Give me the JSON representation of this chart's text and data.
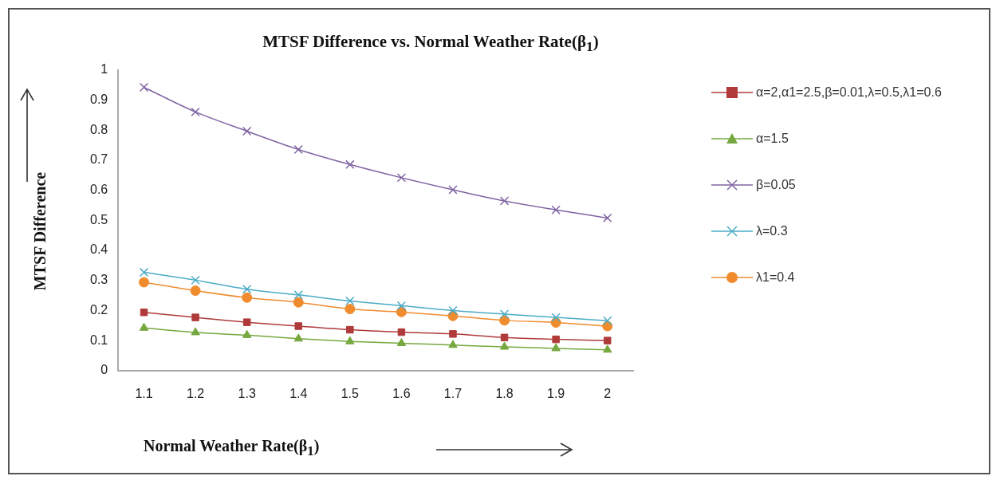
{
  "chart_data": {
    "type": "line",
    "title": "MTSF Difference vs. Normal Weather Rate(β$_{1}$)",
    "xlabel": "Normal Weather Rate(β$_{1}$)",
    "ylabel": "MTSF Difference",
    "categories": [
      "1.1",
      "1.2",
      "1.3",
      "1.4",
      "1.5",
      "1.6",
      "1.7",
      "1.8",
      "1.9",
      "2"
    ],
    "ylim": [
      0,
      1
    ],
    "yticks": [
      0,
      0.1,
      0.2,
      0.3,
      0.4,
      0.5,
      0.6,
      0.7,
      0.8,
      0.9,
      1
    ],
    "grid": false,
    "legend": "right",
    "series": [
      {
        "name": "α=2,α1=2.5,β=0.01,λ=0.5,λ1=0.6",
        "color": "#b03a3a",
        "marker": "square",
        "values": [
          0.194,
          0.177,
          0.161,
          0.148,
          0.136,
          0.128,
          0.122,
          0.11,
          0.104,
          0.1
        ]
      },
      {
        "name": "α=1.5",
        "color": "#77a83f",
        "marker": "triangle",
        "values": [
          0.142,
          0.127,
          0.118,
          0.106,
          0.097,
          0.091,
          0.085,
          0.079,
          0.074,
          0.069
        ]
      },
      {
        "name": "β=0.05",
        "color": "#8064a2",
        "marker": "cross",
        "values": [
          0.943,
          0.861,
          0.797,
          0.736,
          0.686,
          0.642,
          0.602,
          0.565,
          0.535,
          0.508
        ]
      },
      {
        "name": "λ=0.3",
        "color": "#4bacc6",
        "marker": "cross",
        "values": [
          0.327,
          0.301,
          0.271,
          0.252,
          0.232,
          0.216,
          0.2,
          0.188,
          0.177,
          0.166
        ]
      },
      {
        "name": "λ1=0.4",
        "color": "#f08c2e",
        "marker": "circle",
        "values": [
          0.294,
          0.266,
          0.243,
          0.227,
          0.205,
          0.195,
          0.182,
          0.167,
          0.16,
          0.148
        ]
      }
    ]
  }
}
